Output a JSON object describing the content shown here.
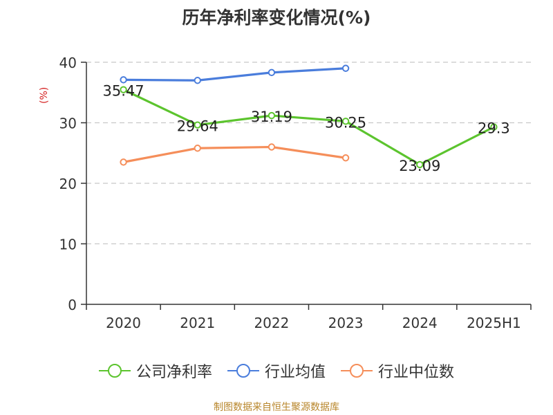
{
  "title": "历年净利率变化情况(%)",
  "y_unit": "(%)",
  "footer": "制图数据来自恒生聚源数据库",
  "colors": {
    "company": "#5cc42e",
    "industry_avg": "#4a7ddc",
    "industry_median": "#f58e5a",
    "axis": "#333333",
    "grid": "#c8c8c8"
  },
  "chart_data": {
    "type": "line",
    "categories": [
      "2020",
      "2021",
      "2022",
      "2023",
      "2024",
      "2025H1"
    ],
    "ylim": [
      0,
      40
    ],
    "yticks": [
      0,
      10,
      20,
      30,
      40
    ],
    "grid": true,
    "legend_position": "bottom",
    "series": [
      {
        "key": "company",
        "name": "公司净利率",
        "values": [
          35.47,
          29.64,
          31.19,
          30.25,
          23.09,
          29.3
        ],
        "labels": [
          "35.47",
          "29.64",
          "31.19",
          "30.25",
          "23.09",
          "29.3"
        ],
        "show_labels": true
      },
      {
        "key": "industry_avg",
        "name": "行业均值",
        "values": [
          37.1,
          37.0,
          38.3,
          39.0,
          null,
          null
        ],
        "show_labels": false
      },
      {
        "key": "industry_median",
        "name": "行业中位数",
        "values": [
          23.5,
          25.8,
          26.0,
          24.2,
          null,
          null
        ],
        "show_labels": false
      }
    ]
  }
}
